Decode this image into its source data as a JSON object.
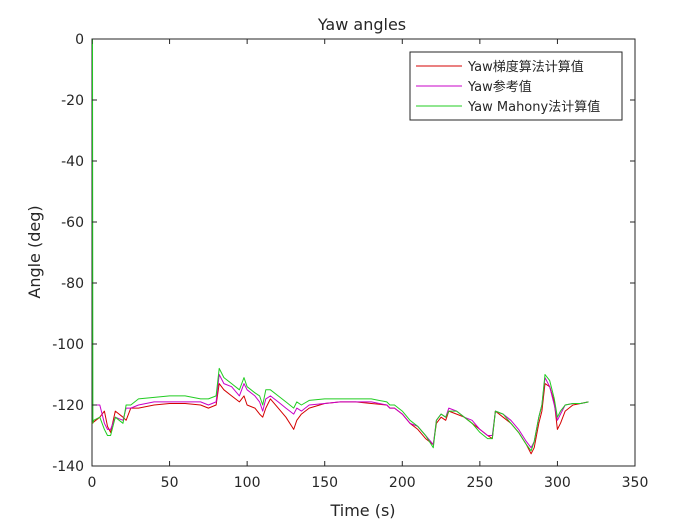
{
  "chart_data": {
    "type": "line",
    "title": "Yaw angles",
    "xlabel": "Time (s)",
    "ylabel": "Angle (deg)",
    "xlim": [
      0,
      350
    ],
    "ylim": [
      -140,
      0
    ],
    "xticks": [
      0,
      50,
      100,
      150,
      200,
      250,
      300,
      350
    ],
    "yticks": [
      0,
      -20,
      -40,
      -60,
      -80,
      -100,
      -120,
      -140
    ],
    "legend_position": "top-right",
    "series": [
      {
        "name": "Yaw梯度算法计算值",
        "color": "#d40000",
        "x": [
          0,
          5,
          8,
          10,
          12,
          15,
          20,
          22,
          25,
          30,
          40,
          50,
          60,
          70,
          75,
          80,
          82,
          85,
          90,
          95,
          98,
          100,
          105,
          108,
          110,
          112,
          115,
          120,
          125,
          130,
          132,
          135,
          140,
          150,
          160,
          170,
          180,
          190,
          192,
          195,
          200,
          205,
          210,
          215,
          220,
          222,
          225,
          228,
          230,
          235,
          240,
          245,
          250,
          255,
          258,
          260,
          265,
          270,
          275,
          280,
          283,
          285,
          288,
          290,
          292,
          295,
          298,
          300,
          302,
          305,
          310,
          315,
          320
        ],
        "y": [
          -126,
          -124,
          -122,
          -127,
          -129,
          -122,
          -124,
          -125,
          -121,
          -121,
          -120,
          -119.5,
          -119.5,
          -120,
          -121,
          -120,
          -113,
          -115,
          -117,
          -119,
          -117,
          -120,
          -121,
          -123,
          -124,
          -121,
          -118,
          -121,
          -124,
          -128,
          -125,
          -123,
          -121,
          -119.5,
          -119,
          -119,
          -119.5,
          -120,
          -121,
          -121,
          -123,
          -126,
          -128,
          -131,
          -133,
          -126,
          -124,
          -125,
          -122,
          -123,
          -124,
          -126,
          -128,
          -130,
          -131,
          -122,
          -124,
          -126,
          -129,
          -133,
          -136,
          -134,
          -126,
          -122,
          -113,
          -114,
          -119,
          -128,
          -126,
          -122,
          -120,
          -119.5,
          -119
        ]
      },
      {
        "name": "Yaw参考值",
        "color": "#c800c8",
        "x": [
          0,
          5,
          8,
          10,
          12,
          15,
          20,
          22,
          25,
          30,
          40,
          50,
          60,
          70,
          75,
          80,
          82,
          85,
          90,
          95,
          98,
          100,
          105,
          108,
          110,
          112,
          115,
          120,
          125,
          130,
          132,
          135,
          140,
          150,
          160,
          170,
          180,
          190,
          192,
          195,
          200,
          205,
          210,
          215,
          220,
          222,
          225,
          228,
          230,
          235,
          240,
          245,
          250,
          255,
          258,
          260,
          265,
          270,
          275,
          280,
          283,
          285,
          288,
          290,
          292,
          295,
          298,
          300,
          302,
          305,
          310,
          315,
          320
        ],
        "y": [
          -120,
          -120,
          -126,
          -128,
          -128,
          -124,
          -125,
          -121,
          -121,
          -120,
          -119,
          -119,
          -119,
          -119,
          -120,
          -119,
          -110,
          -113,
          -114,
          -117,
          -113,
          -115,
          -117,
          -119,
          -122,
          -118,
          -117,
          -119,
          -121,
          -123,
          -121,
          -122,
          -120,
          -119.5,
          -119,
          -119,
          -119,
          -120,
          -121,
          -121,
          -123,
          -126,
          -127,
          -130,
          -133,
          -125,
          -123,
          -124,
          -121,
          -122,
          -124,
          -125,
          -128,
          -130,
          -130,
          -122,
          -123,
          -125,
          -128,
          -132,
          -134,
          -132,
          -124,
          -120,
          -111,
          -114,
          -120,
          -125,
          -123,
          -120,
          -119.5,
          -119.5,
          -119
        ]
      },
      {
        "name": "Yaw Mahony法计算值",
        "color": "#22cc22",
        "x": [
          0,
          0.3,
          0.6,
          1,
          5,
          8,
          10,
          12,
          15,
          20,
          22,
          25,
          30,
          40,
          50,
          60,
          70,
          75,
          80,
          82,
          85,
          90,
          95,
          98,
          100,
          105,
          108,
          110,
          112,
          115,
          120,
          125,
          130,
          132,
          135,
          140,
          150,
          160,
          170,
          180,
          190,
          192,
          195,
          200,
          205,
          210,
          215,
          220,
          222,
          225,
          228,
          230,
          235,
          240,
          245,
          250,
          255,
          258,
          260,
          265,
          270,
          275,
          280,
          283,
          285,
          288,
          290,
          292,
          295,
          298,
          300,
          302,
          305,
          310,
          315,
          320
        ],
        "y": [
          0,
          0,
          -126,
          -125,
          -124,
          -128,
          -130,
          -130,
          -124,
          -126,
          -120,
          -120,
          -118,
          -117.5,
          -117,
          -117,
          -118,
          -118,
          -117,
          -108,
          -111,
          -113,
          -115,
          -111,
          -114,
          -116,
          -117,
          -120,
          -115,
          -115,
          -117,
          -119,
          -121,
          -119,
          -120,
          -118.5,
          -118,
          -118,
          -118,
          -118,
          -119,
          -120,
          -120,
          -122,
          -125,
          -127,
          -130,
          -134,
          -125,
          -123,
          -124,
          -122,
          -122,
          -124,
          -126,
          -129,
          -131,
          -131,
          -122,
          -123,
          -126,
          -129,
          -133,
          -135,
          -132,
          -124,
          -120,
          -110,
          -112,
          -118,
          -124,
          -122,
          -120,
          -119.5,
          -119.5,
          -119
        ]
      }
    ]
  }
}
